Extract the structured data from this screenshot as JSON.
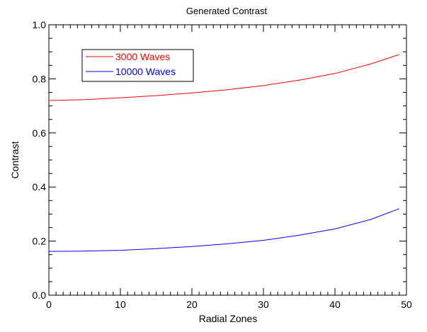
{
  "chart_data": {
    "type": "line",
    "title": "Generated Contrast",
    "xlabel": "Radial Zones",
    "ylabel": "Contrast",
    "xlim": [
      0,
      50
    ],
    "ylim": [
      0.0,
      1.0
    ],
    "x_ticks": [
      0,
      10,
      20,
      30,
      40,
      50
    ],
    "x_tick_labels": [
      "0",
      "10",
      "20",
      "30",
      "40",
      "50"
    ],
    "y_ticks": [
      0.0,
      0.2,
      0.4,
      0.6,
      0.8,
      1.0
    ],
    "y_tick_labels": [
      "0.0",
      "0.2",
      "0.4",
      "0.6",
      "0.8",
      "1.0"
    ],
    "grid": false,
    "legend_position": "top-left",
    "series": [
      {
        "name": "3000 Waves",
        "color": "#ff0000",
        "x": [
          0,
          5,
          10,
          15,
          20,
          25,
          30,
          35,
          40,
          45,
          49
        ],
        "y": [
          0.72,
          0.723,
          0.73,
          0.738,
          0.748,
          0.76,
          0.775,
          0.795,
          0.82,
          0.855,
          0.89
        ]
      },
      {
        "name": "10000 Waves",
        "color": "#0000ff",
        "x": [
          0,
          5,
          10,
          15,
          20,
          25,
          30,
          35,
          40,
          45,
          49
        ],
        "y": [
          0.162,
          0.163,
          0.166,
          0.172,
          0.18,
          0.19,
          0.203,
          0.222,
          0.245,
          0.28,
          0.32
        ]
      }
    ]
  }
}
